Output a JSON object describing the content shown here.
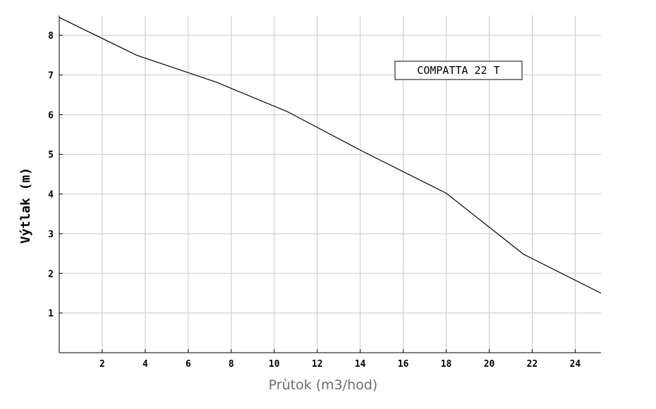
{
  "chart_data": {
    "type": "line",
    "title": "",
    "xlabel": "Prùtok (m3/hod)",
    "ylabel": "Výtlak (m)",
    "xlim": [
      0,
      25.2
    ],
    "ylim": [
      0,
      8.5
    ],
    "xticks": [
      2,
      4,
      6,
      8,
      10,
      12,
      14,
      16,
      18,
      20,
      22,
      24
    ],
    "yticks": [
      1,
      2,
      3,
      4,
      5,
      6,
      7,
      8
    ],
    "grid": true,
    "annotation": "COMPATTA 22 T",
    "series": [
      {
        "x": [
          0,
          3.6,
          7.3,
          10.6,
          14.2,
          18,
          21.6,
          25.2
        ],
        "y": [
          8.45,
          7.5,
          6.82,
          6.08,
          5.05,
          4.02,
          2.48,
          1.5
        ]
      }
    ],
    "colors": {
      "line": "#000000",
      "grid": "#c8c8c8",
      "axis": "#000000",
      "xlabel": "#6b6b6b"
    }
  }
}
